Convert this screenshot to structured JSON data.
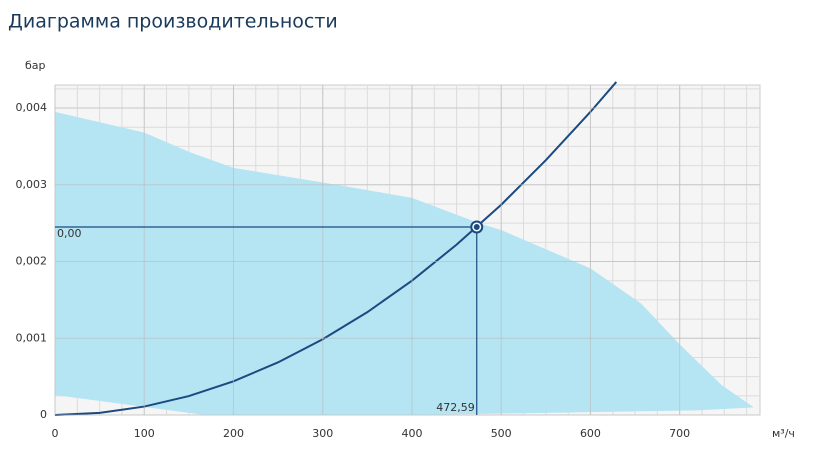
{
  "chart_data": {
    "type": "line",
    "title": "Диаграмма производительности",
    "y_label": "бар",
    "x_label": "м³/ч",
    "xlim": [
      0,
      790
    ],
    "ylim": [
      0,
      0.0043
    ],
    "xticks": [
      0,
      100,
      200,
      300,
      400,
      500,
      600,
      700
    ],
    "yticks": [
      0,
      {
        "value": 0.001,
        "label": "0,001"
      },
      {
        "value": 0.002,
        "label": "0,002"
      },
      {
        "value": 0.003,
        "label": "0,003"
      },
      {
        "value": 0.004,
        "label": "0,004"
      }
    ],
    "grid": true,
    "series": [
      {
        "kind": "area",
        "color": "#b5e4f3",
        "x": [
          0,
          100,
          152,
          200,
          300,
          400,
          475,
          500,
          600,
          657,
          700,
          747,
          783,
          720,
          400,
          168,
          0
        ],
        "values": [
          0.00395,
          0.00368,
          0.00342,
          0.00322,
          0.00303,
          0.00283,
          0.0025,
          0.00241,
          0.00191,
          0.00145,
          0.00092,
          0.00039,
          0.0001,
          6e-05,
          0,
          0,
          0.00026
        ]
      },
      {
        "kind": "curve",
        "color": "#1b4a80",
        "x": [
          0,
          50,
          100,
          150,
          200,
          250,
          300,
          350,
          400,
          450,
          500,
          550,
          600,
          629
        ],
        "values": [
          0,
          2.74e-05,
          0.00011,
          0.000247,
          0.000439,
          0.000686,
          0.000987,
          0.00134,
          0.00175,
          0.00222,
          0.00274,
          0.00332,
          0.00395,
          0.00434
        ]
      }
    ],
    "operating_point": {
      "x": 472.59,
      "y": 0.00245,
      "x_label": "472,59",
      "y_label": "0,00"
    }
  }
}
